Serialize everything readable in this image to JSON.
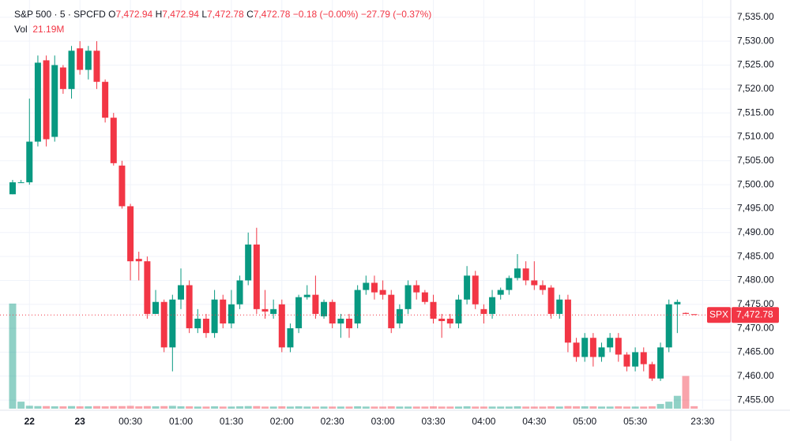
{
  "header": {
    "symbol": "S&P 500 · 5 · SPCFD",
    "open_label": "O",
    "open": "7,472.94",
    "high_label": "H",
    "high": "7,472.94",
    "low_label": "L",
    "low": "7,472.78",
    "close_label": "C",
    "close": "7,472.78",
    "change": "−0.18 (−0.00%)",
    "change_day": "−27.79 (−0.37%)",
    "volume_label": "Vol",
    "volume": "21.19M"
  },
  "chart_data": {
    "type": "candlestick",
    "up_color": "#089981",
    "down_color": "#f23645",
    "grid": true,
    "open": [
      7498,
      7500.5,
      7500.5,
      7509,
      7526,
      7510,
      7524.5,
      7520,
      7528.5,
      7524,
      7528,
      7521.5,
      7514,
      7504,
      7495.5,
      7484.5,
      7484,
      7473,
      7475.5,
      7466,
      7476,
      7479,
      7470,
      7472,
      7469,
      7476,
      7471,
      7475,
      7480,
      7487.5,
      7474,
      7473,
      7475,
      7466,
      7470,
      7476.5,
      7477,
      7472.5,
      7475.5,
      7471,
      7472,
      7471,
      7478,
      7479.5,
      7478,
      7477,
      7471,
      7474,
      7479,
      7477.5,
      7475.5,
      7472,
      7472,
      7471,
      7476,
      7481,
      7474,
      7473,
      7477,
      7478,
      7480.5,
      7482.5,
      7480,
      7479,
      7478.5,
      7473,
      7476,
      7467,
      7464,
      7468,
      7464,
      7466,
      7468,
      7464.5,
      7462,
      7465,
      7462.5,
      7459.5,
      7466,
      7475,
      7473.2,
      7472.94
    ],
    "high": [
      7501,
      7501,
      7518,
      7527,
      7527,
      7527,
      7525,
      7529,
      7530,
      7529,
      7530,
      7522,
      7515,
      7505,
      7496,
      7486,
      7485,
      7478,
      7476,
      7477,
      7482.5,
      7480,
      7474,
      7473,
      7478,
      7477,
      7478,
      7481,
      7490,
      7491,
      7478,
      7476,
      7476,
      7471,
      7477,
      7479,
      7481,
      7476,
      7476,
      7473,
      7473,
      7479,
      7481,
      7481,
      7480,
      7478,
      7475,
      7480,
      7480,
      7478,
      7477,
      7473,
      7473,
      7477,
      7483,
      7482,
      7475,
      7478,
      7478.5,
      7481,
      7485.5,
      7484,
      7484,
      7480,
      7479,
      7477,
      7477,
      7468,
      7469,
      7469,
      7467,
      7469,
      7469,
      7465,
      7466,
      7466,
      7463,
      7467,
      7476,
      7476,
      7473.3,
      7472.94
    ],
    "low": [
      7498,
      7500.5,
      7500,
      7508,
      7508,
      7509,
      7519,
      7518,
      7523,
      7522,
      7520,
      7513,
      7504,
      7495,
      7480,
      7480,
      7472,
      7473,
      7465,
      7461,
      7474,
      7469,
      7469,
      7468,
      7468,
      7470,
      7470,
      7474,
      7479,
      7473,
      7472,
      7472,
      7465,
      7465,
      7469,
      7476,
      7472,
      7472,
      7470,
      7468,
      7468,
      7470,
      7477,
      7476,
      7476,
      7469,
      7470,
      7473,
      7476,
      7475,
      7471,
      7468,
      7470,
      7470,
      7475,
      7474,
      7471,
      7472,
      7476,
      7477,
      7480,
      7479,
      7478,
      7477,
      7472,
      7472,
      7465,
      7463,
      7463,
      7462,
      7463,
      7465,
      7463,
      7461,
      7461,
      7461,
      7459,
      7459,
      7465,
      7469,
      7473,
      7472.78
    ],
    "close": [
      7500.5,
      7500.5,
      7509,
      7525.5,
      7509.5,
      7525,
      7520,
      7528,
      7524,
      7528,
      7521.5,
      7514,
      7504.5,
      7495.5,
      7484,
      7484,
      7473,
      7475.5,
      7466,
      7476,
      7479,
      7470,
      7472,
      7469,
      7476,
      7471,
      7475,
      7480,
      7487.5,
      7474,
      7473.5,
      7474,
      7466,
      7470,
      7476.5,
      7477,
      7473,
      7475.5,
      7471,
      7472,
      7470,
      7478,
      7479.5,
      7477.5,
      7477,
      7470,
      7474,
      7479,
      7477.5,
      7475.5,
      7472,
      7471.5,
      7471,
      7476,
      7481,
      7475,
      7473,
      7476.5,
      7478,
      7480.5,
      7482.5,
      7480,
      7479,
      7478,
      7473,
      7476,
      7467,
      7464,
      7468,
      7464,
      7466,
      7468,
      7464.5,
      7462,
      7465,
      7462.5,
      7459.5,
      7466,
      7475,
      7475.5,
      7473,
      7472.78
    ],
    "volume": [
      900,
      60,
      25,
      22,
      22,
      20,
      20,
      22,
      20,
      20,
      22,
      20,
      22,
      22,
      24,
      20,
      22,
      20,
      22,
      24,
      20,
      20,
      18,
      18,
      20,
      18,
      18,
      20,
      22,
      22,
      18,
      18,
      20,
      18,
      20,
      18,
      18,
      18,
      18,
      18,
      18,
      20,
      18,
      18,
      18,
      20,
      18,
      18,
      18,
      18,
      20,
      18,
      18,
      18,
      20,
      18,
      18,
      18,
      18,
      18,
      20,
      18,
      18,
      18,
      20,
      18,
      22,
      20,
      20,
      20,
      18,
      18,
      20,
      18,
      18,
      18,
      20,
      40,
      60,
      110,
      280,
      21.19
    ],
    "ylim": [
      7453.2,
      7538.6
    ],
    "yticks": [
      {
        "value": 7455,
        "label": "7,455.00"
      },
      {
        "value": 7460,
        "label": "7,460.00"
      },
      {
        "value": 7465,
        "label": "7,465.00"
      },
      {
        "value": 7470,
        "label": "7,470.00"
      },
      {
        "value": 7475,
        "label": "7,475.00"
      },
      {
        "value": 7480,
        "label": "7,480.00"
      },
      {
        "value": 7485,
        "label": "7,485.00"
      },
      {
        "value": 7490,
        "label": "7,490.00"
      },
      {
        "value": 7495,
        "label": "7,495.00"
      },
      {
        "value": 7500,
        "label": "7,500.00"
      },
      {
        "value": 7505,
        "label": "7,505.00"
      },
      {
        "value": 7510,
        "label": "7,510.00"
      },
      {
        "value": 7515,
        "label": "7,515.00"
      },
      {
        "value": 7520,
        "label": "7,520.00"
      },
      {
        "value": 7525,
        "label": "7,525.00"
      },
      {
        "value": 7530,
        "label": "7,530.00"
      },
      {
        "value": 7535,
        "label": "7,535.00"
      }
    ],
    "xlim": [
      -1.5,
      85.35
    ],
    "xticks": [
      {
        "value": 2,
        "label": "22"
      },
      {
        "value": 8,
        "label": "23"
      },
      {
        "value": 14,
        "label": "00:30"
      },
      {
        "value": 20,
        "label": "01:00"
      },
      {
        "value": 26,
        "label": "01:30"
      },
      {
        "value": 32,
        "label": "02:00"
      },
      {
        "value": 38,
        "label": "02:30"
      },
      {
        "value": 44,
        "label": "03:00"
      },
      {
        "value": 50,
        "label": "03:30"
      },
      {
        "value": 56,
        "label": "04:00"
      },
      {
        "value": 62,
        "label": "04:30"
      },
      {
        "value": 68,
        "label": "05:00"
      },
      {
        "value": 74,
        "label": "05:30"
      },
      {
        "value": 82,
        "label": "23:30"
      }
    ],
    "bold_xticks": [
      "22",
      "23"
    ],
    "volume_lim": [
      0,
      3500
    ],
    "last_symbol": "SPX",
    "last_price": {
      "value": 7472.78,
      "label": "7,472.78"
    }
  }
}
